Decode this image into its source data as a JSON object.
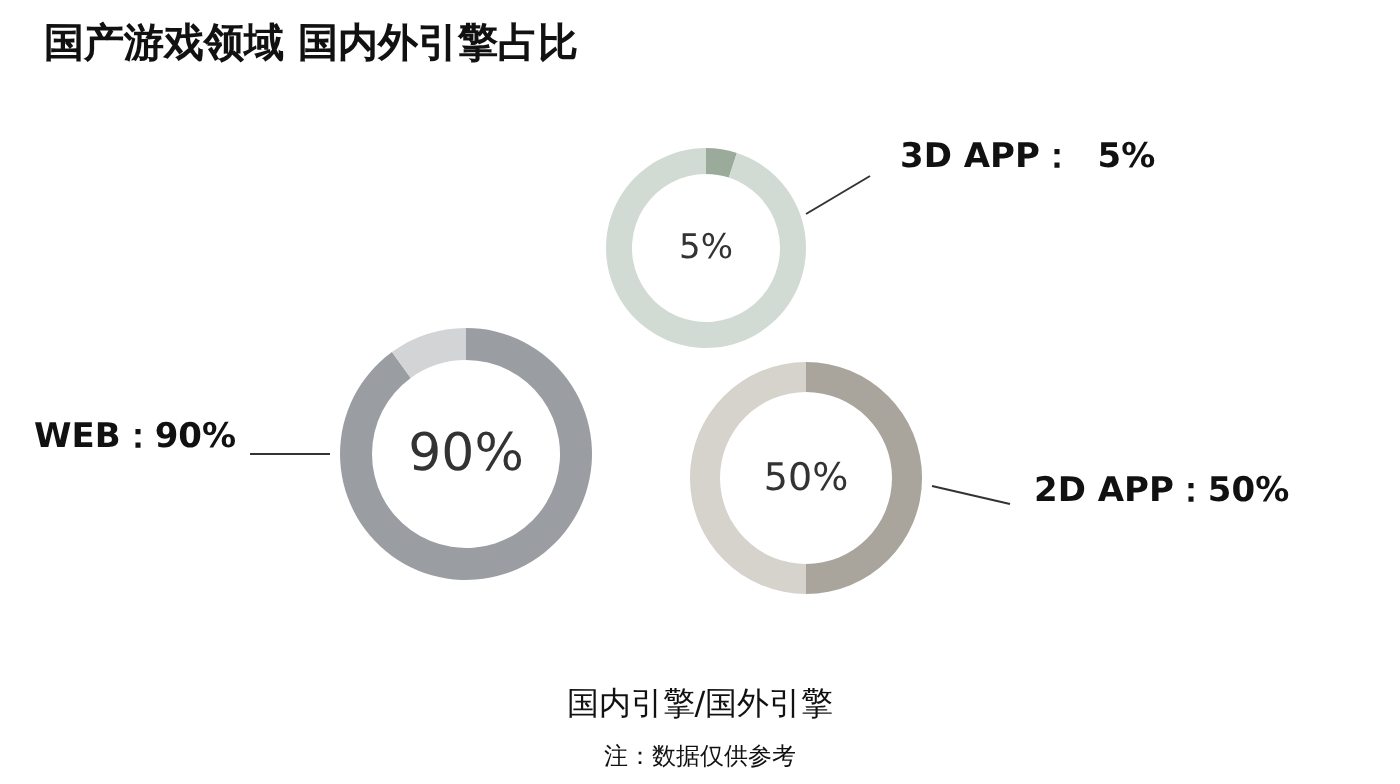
{
  "chart_data": [
    {
      "type": "other",
      "title": "国产游戏领域 国内外引擎占比",
      "annotations": [
        "国内引擎/国外引擎",
        "注：数据仅供参考"
      ]
    },
    {
      "type": "donut",
      "title": "WEB：90%",
      "categories": [
        null,
        null
      ],
      "values": [
        90,
        10
      ],
      "colors": [
        "#9a9ea3",
        "#d3d4d6"
      ],
      "value_labels": [
        "90%",
        null
      ]
    },
    {
      "type": "donut",
      "title": "3D APP：  5%",
      "categories": [
        null,
        null
      ],
      "values": [
        5,
        95
      ],
      "colors": [
        "#9aab9c",
        "#d1dbd3"
      ],
      "value_labels": [
        "5%",
        null
      ]
    },
    {
      "type": "donut",
      "title": "2D APP：50%",
      "categories": [
        null,
        null
      ],
      "values": [
        50,
        50
      ],
      "colors": [
        "#a9a59c",
        "#d6d3cd"
      ],
      "value_labels": [
        "50%",
        null
      ]
    }
  ]
}
